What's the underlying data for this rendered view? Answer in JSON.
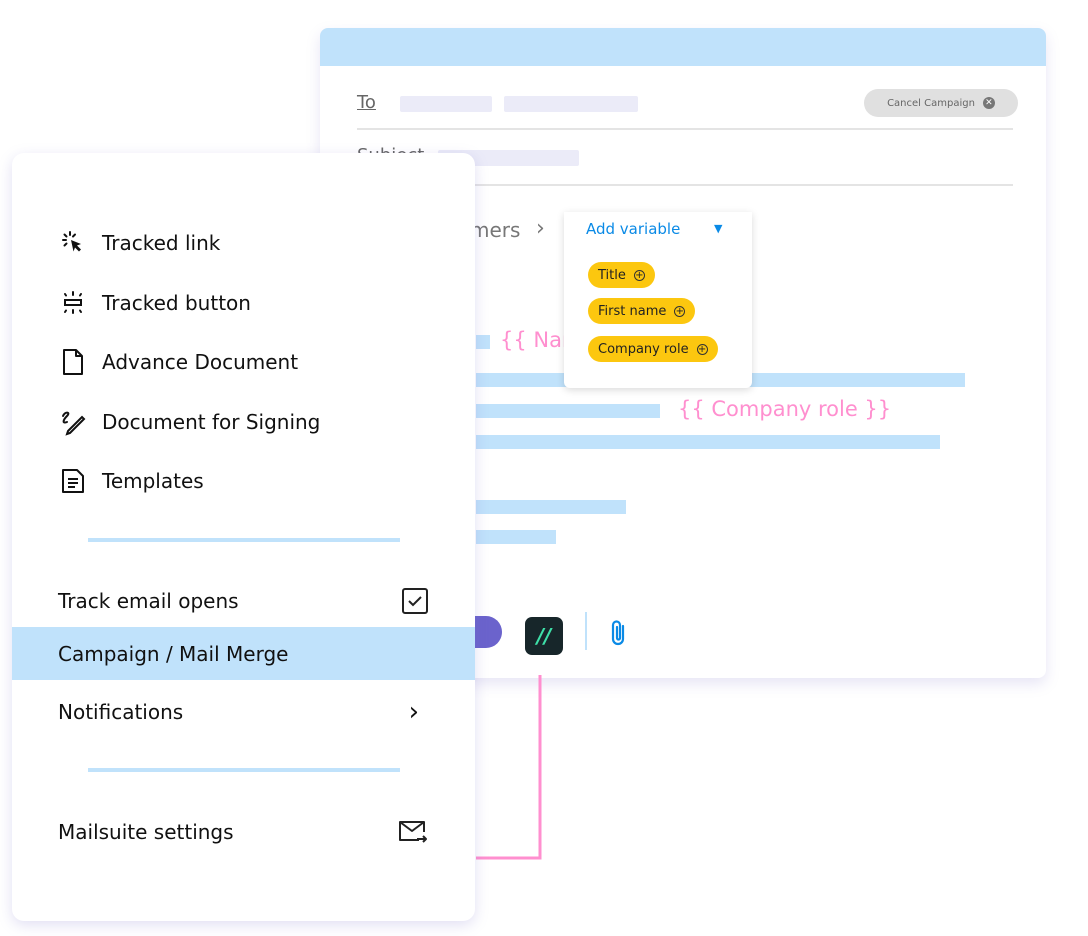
{
  "compose": {
    "to_label": "To",
    "subject_label": "Subject",
    "cancel_label": "Cancel Campaign",
    "breadcrumb_text": "mers",
    "var_name": "{{ Nar",
    "var_company": "{{ Company role }}",
    "add_variable": "Add variable",
    "variables": [
      "Title",
      "First name",
      "Company role"
    ]
  },
  "menu": {
    "items": [
      {
        "label": "Tracked link",
        "icon": "cursor-click-icon"
      },
      {
        "label": "Tracked button",
        "icon": "tracked-button-icon"
      },
      {
        "label": "Advance Document",
        "icon": "document-icon"
      },
      {
        "label": "Document for Signing",
        "icon": "signature-icon"
      },
      {
        "label": "Templates",
        "icon": "template-icon"
      }
    ],
    "track_opens": "Track email opens",
    "track_opens_checked": true,
    "campaign": "Campaign / Mail Merge",
    "notifications": "Notifications",
    "settings": "Mailsuite settings"
  },
  "colors": {
    "accent": "#c0e2fb",
    "chip": "#fcc70f",
    "pink": "#ff8fcf",
    "link": "#0a8ae6"
  }
}
